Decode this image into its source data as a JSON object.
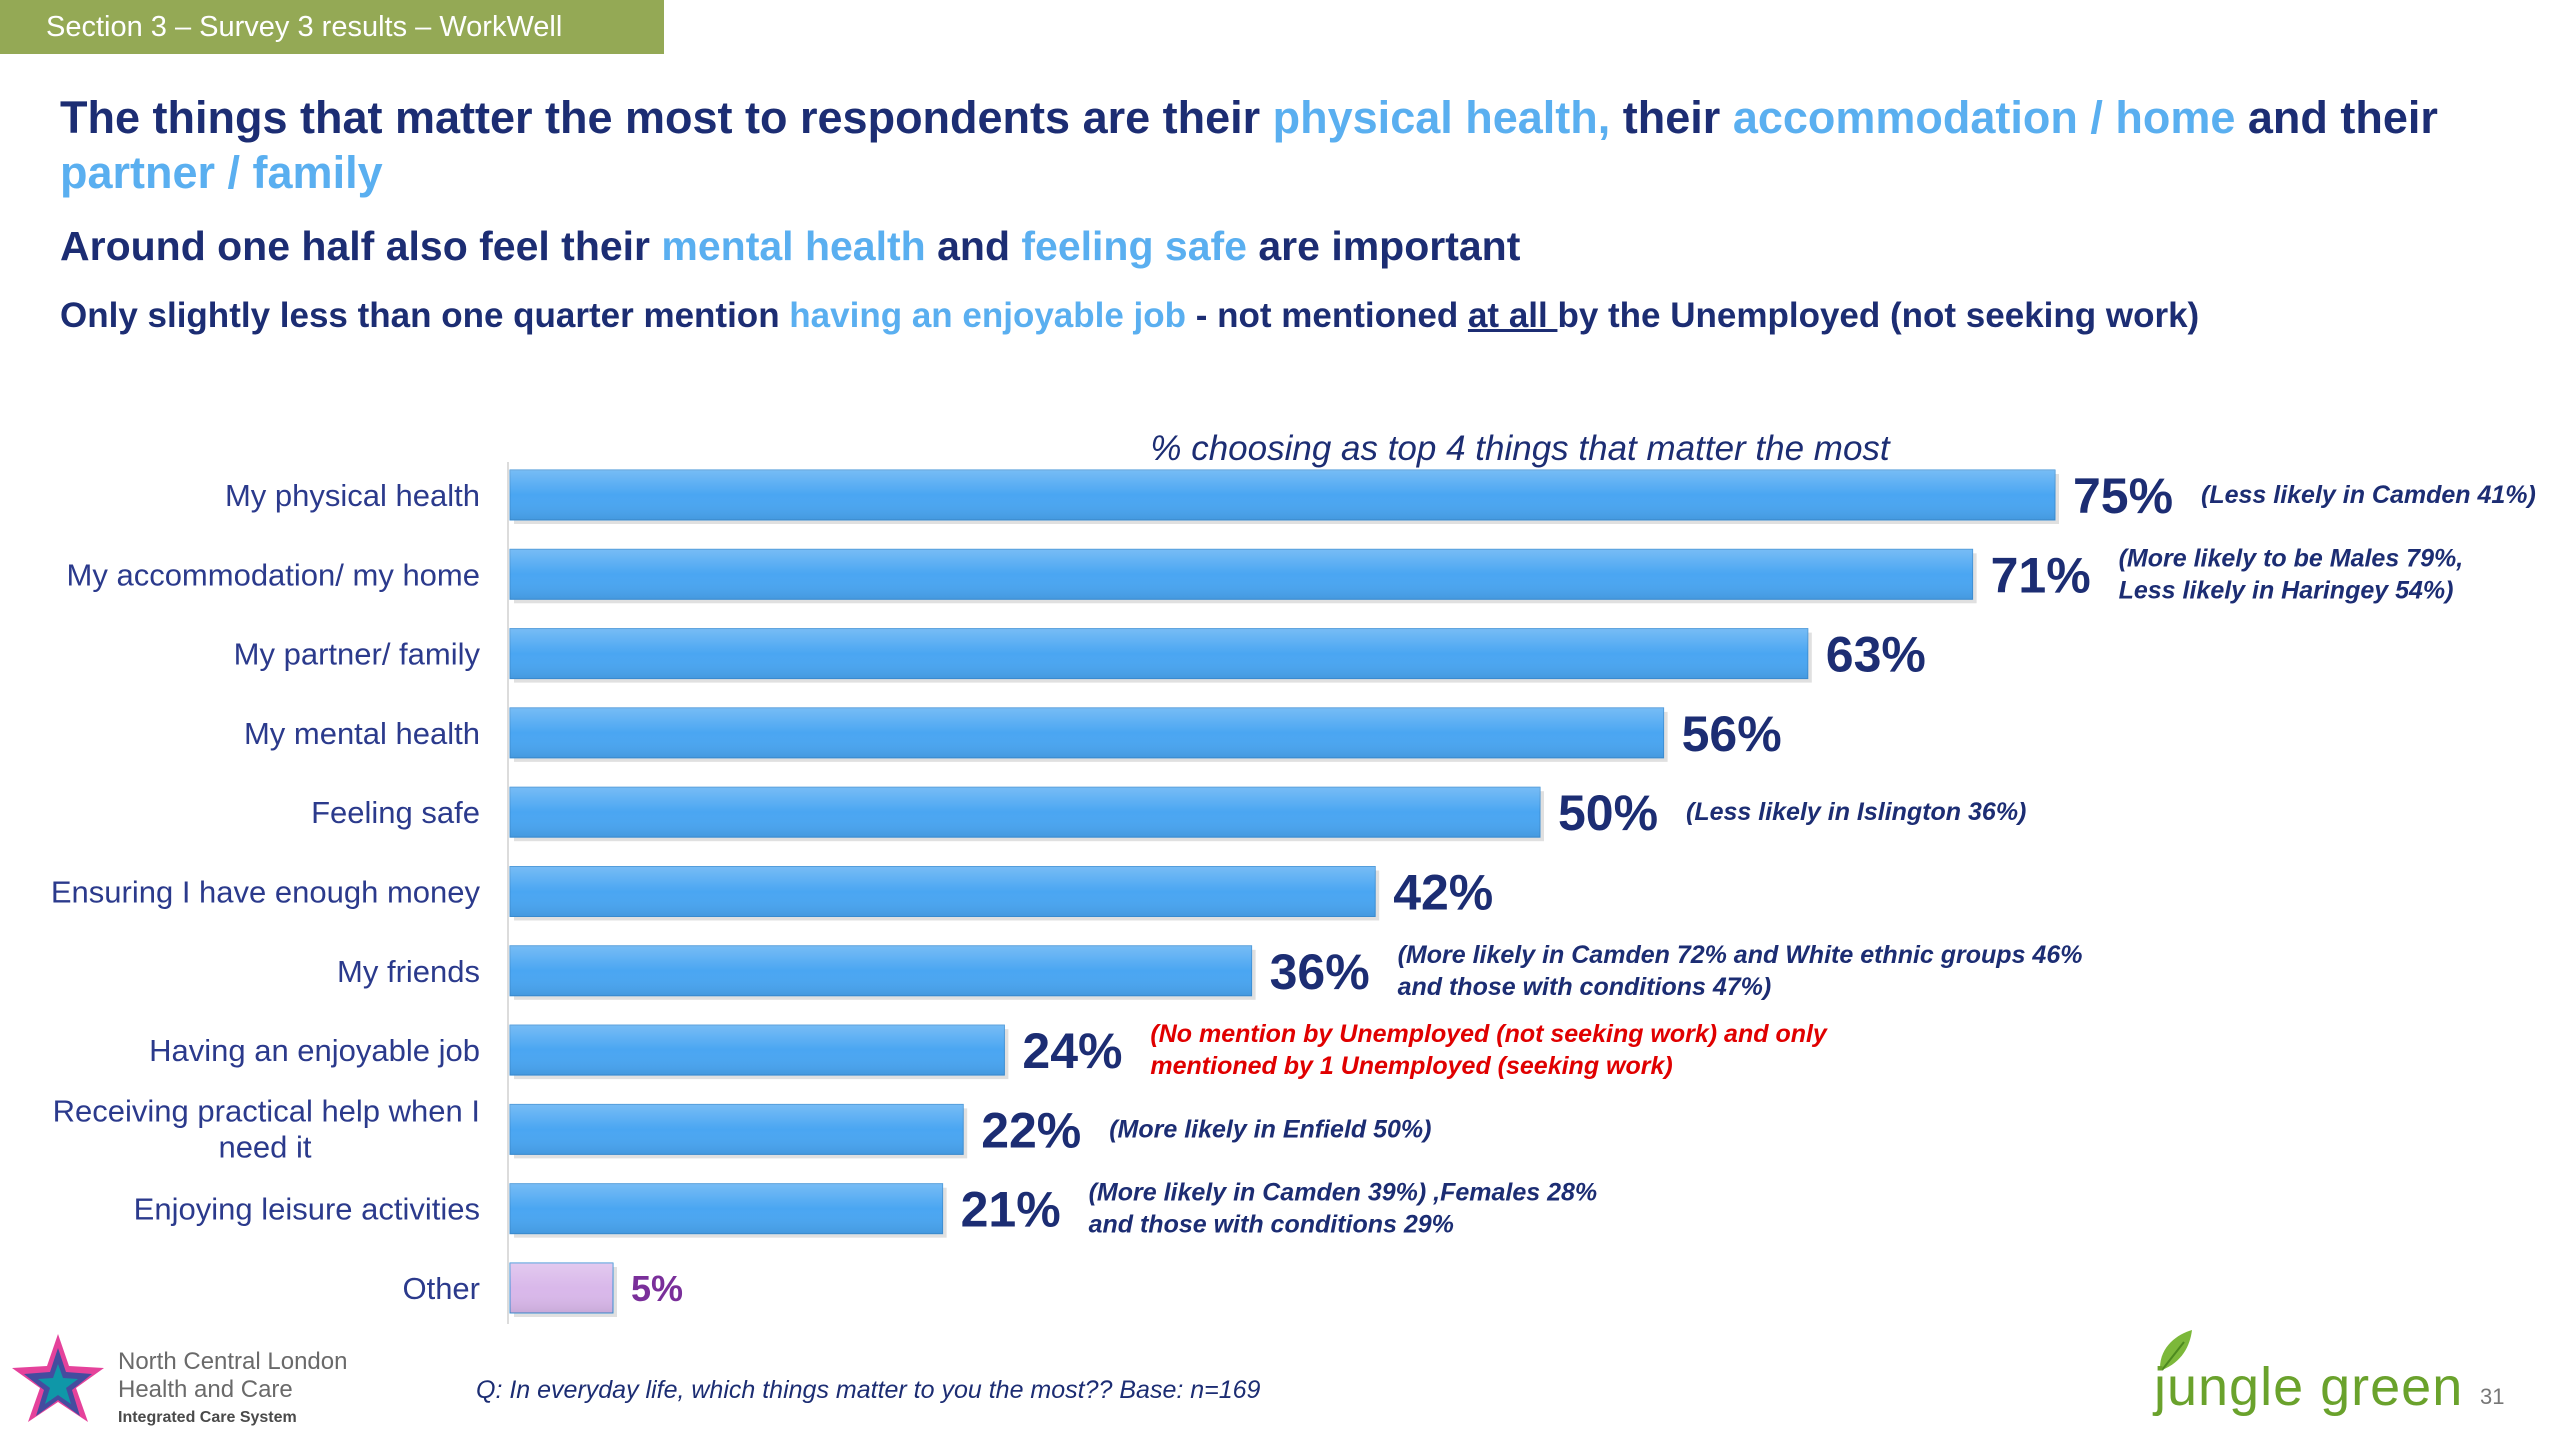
{
  "section_tag": "Section 3 – Survey 3 results – WorkWell",
  "headline1": {
    "p1": "The things that matter the most  to respondents are their ",
    "h1": "physical health,",
    "p2": " their ",
    "h2": "accommodation / home",
    "p3": " and their ",
    "h3": "partner / family"
  },
  "headline2": {
    "p1": "Around one half also feel their ",
    "h1": "mental health",
    "p2": " and ",
    "h2": "feeling safe",
    "p3": " are important"
  },
  "headline3": {
    "p1": "Only slightly less than one quarter mention ",
    "h1": "having an enjoyable job",
    "p2": " - not mentioned ",
    "u1": "at all ",
    "p3": "by the Unemployed (not seeking work)"
  },
  "chart_data": {
    "type": "bar",
    "orientation": "horizontal",
    "title": "% choosing as top 4 things that matter the most",
    "unit": "%",
    "xlim": [
      0,
      100
    ],
    "grid": false,
    "categories": [
      "My physical health",
      "My accommodation/ my home",
      "My partner/ family",
      "My mental health",
      "Feeling safe",
      "Ensuring I have enough money",
      "My friends",
      "Having an enjoyable job",
      "Receiving practical help when I need it",
      "Enjoying leisure activities",
      "Other"
    ],
    "values": [
      75,
      71,
      63,
      56,
      50,
      42,
      36,
      24,
      22,
      21,
      5
    ],
    "value_labels": [
      "75%",
      "71%",
      "63%",
      "56%",
      "50%",
      "42%",
      "36%",
      "24%",
      "22%",
      "21%",
      "5%"
    ],
    "bar_colors": [
      "#4aa6f2",
      "#4aa6f2",
      "#4aa6f2",
      "#4aa6f2",
      "#4aa6f2",
      "#4aa6f2",
      "#4aa6f2",
      "#4aa6f2",
      "#4aa6f2",
      "#4aa6f2",
      "#d9b8ea"
    ],
    "annotations": [
      [
        "(Less likely in Camden 41%)"
      ],
      [
        "(More likely to be Males 79%,",
        "Less likely in Haringey 54%)"
      ],
      [],
      [],
      [
        "(Less likely in Islington 36%)"
      ],
      [],
      [
        "(More likely in Camden 72% and White ethnic groups 46%",
        "and those with conditions 47%)"
      ],
      [
        "(No mention by Unemployed (not seeking work) and only",
        "mentioned by 1 Unemployed (seeking work)"
      ],
      [
        "(More likely in Enfield 50%)"
      ],
      [
        "(More likely in Camden 39%) ,Females 28%",
        "and those with conditions 29%"
      ],
      []
    ],
    "annotation_colors": [
      "#1c2d73",
      "#1c2d73",
      "#1c2d73",
      "#1c2d73",
      "#1c2d73",
      "#1c2d73",
      "#1c2d73",
      "#e00000",
      "#1c2d73",
      "#1c2d73",
      "#1c2d73"
    ]
  },
  "footnote": "Q: In everyday life, which things matter to you the most?? Base: n=169",
  "page_number": "31",
  "logos": {
    "left_lines": [
      "North Central London",
      "Health and Care",
      "Integrated Care System"
    ],
    "right_text": "jungle green"
  }
}
